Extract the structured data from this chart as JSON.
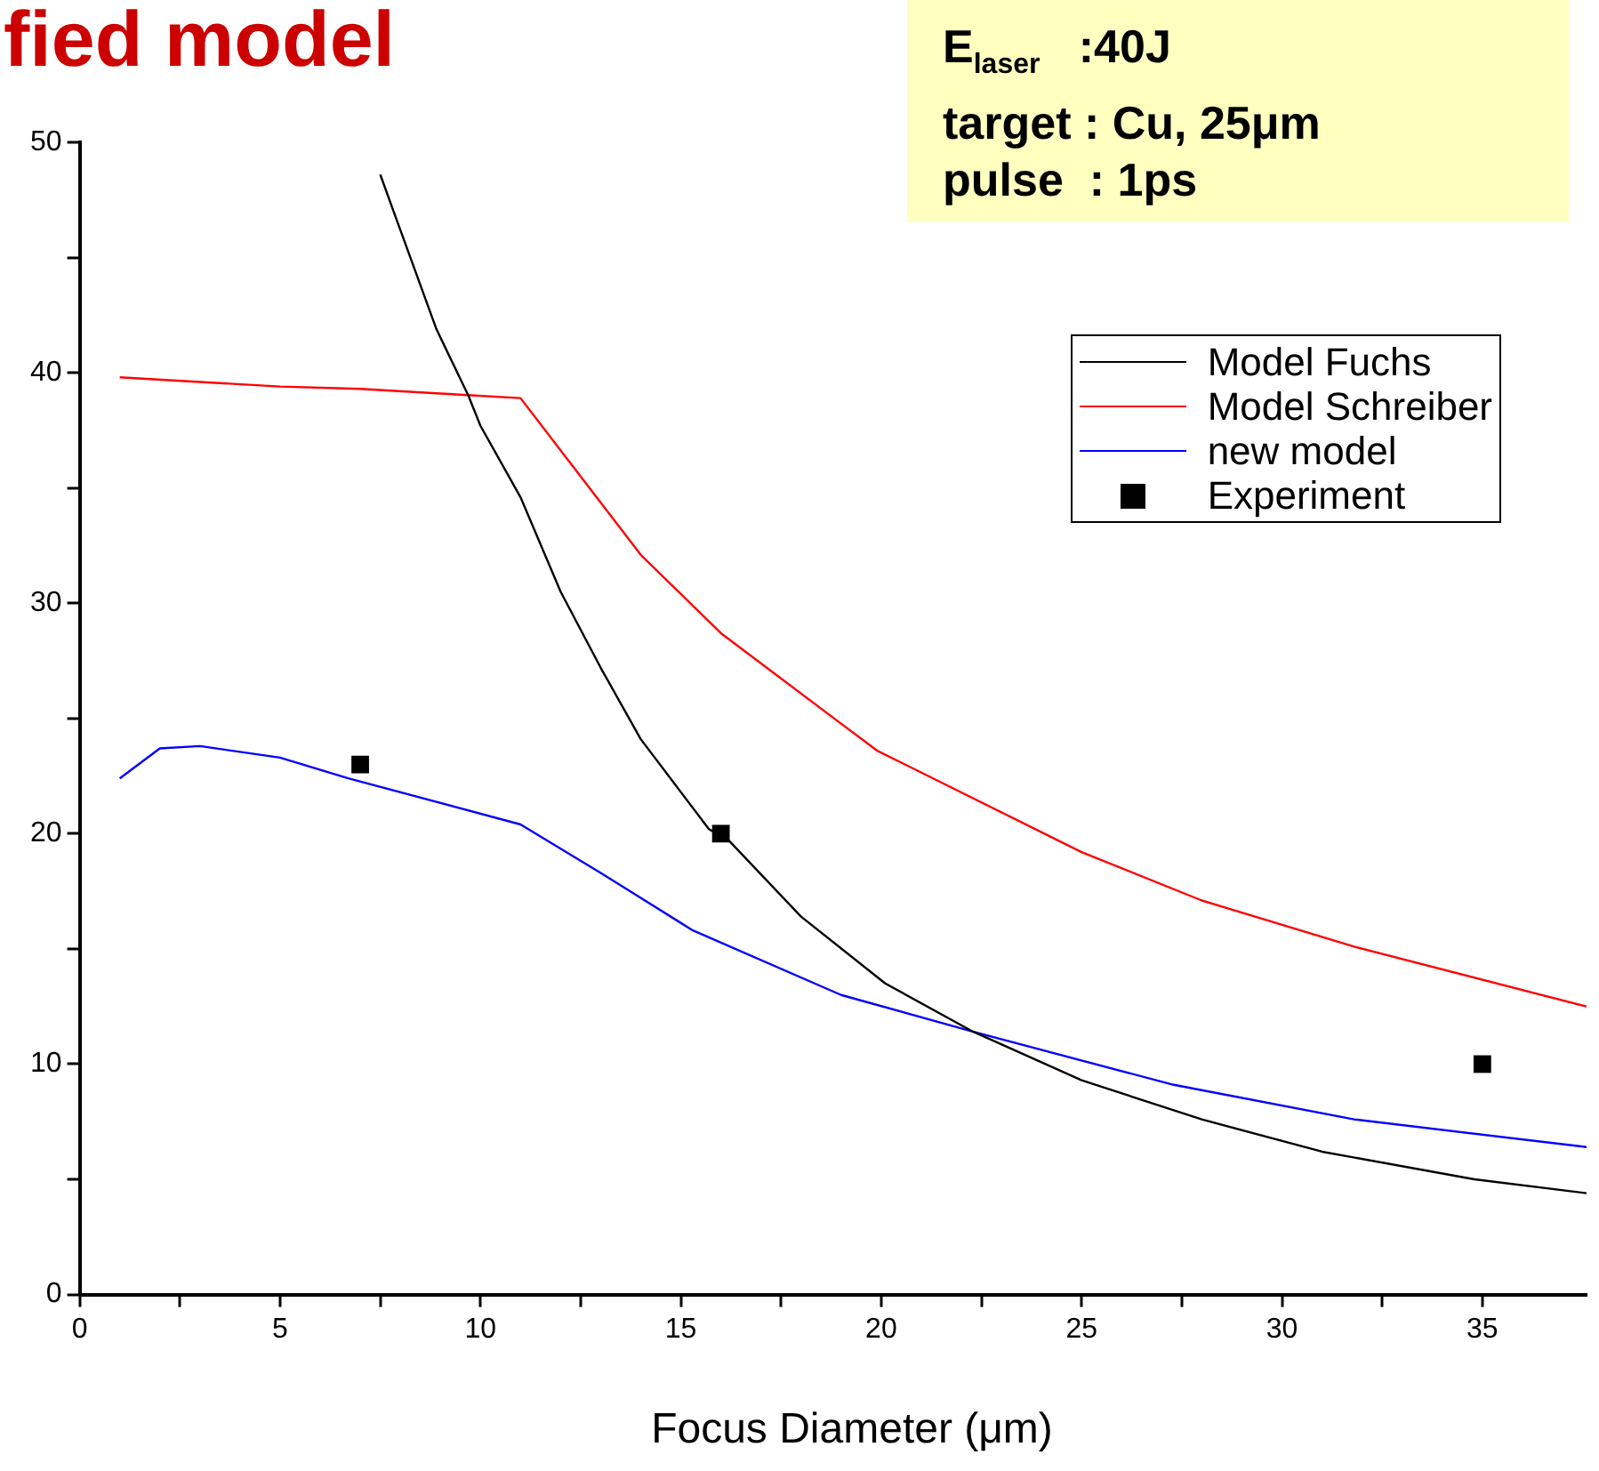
{
  "chart_data": {
    "type": "line",
    "title": "fied model",
    "xlabel": "Focus Diameter (μm)",
    "annotations": [
      "E$_{laser}$   :40J",
      "target : Cu, 25μm",
      "pulse  : 1ps"
    ],
    "xlim": [
      0,
      37.6
    ],
    "ylim": [
      0,
      50
    ],
    "xticks": [
      0,
      {
        "value": 2.5,
        "label": null
      },
      5,
      {
        "value": 7.5,
        "label": null
      },
      10,
      {
        "value": 12.5,
        "label": null
      },
      15,
      {
        "value": 17.5,
        "label": null
      },
      20,
      {
        "value": 22.5,
        "label": null
      },
      25,
      {
        "value": 27.5,
        "label": null
      },
      30,
      {
        "value": 32.5,
        "label": null
      },
      35
    ],
    "yticks": [
      0,
      {
        "value": 5,
        "label": null
      },
      10,
      {
        "value": 15,
        "label": null
      },
      20,
      {
        "value": 25,
        "label": null
      },
      30,
      {
        "value": 35,
        "label": null
      },
      40,
      {
        "value": 45,
        "label": null
      },
      50
    ],
    "grid": false,
    "legend": "top right",
    "line_style": "solid",
    "series": [
      {
        "name": "Model Fuchs",
        "color": "#000000",
        "marker": "none",
        "x": [
          7.5,
          8.0,
          8.9,
          9.7,
          10.0,
          11.0,
          12.0,
          13.0,
          14.0,
          15.7,
          16.2,
          18.0,
          20.1,
          22.3,
          25.0,
          28.0,
          31.0,
          34.8,
          37.6
        ],
        "values": [
          48.6,
          46.2,
          41.9,
          39.0,
          37.7,
          34.6,
          30.5,
          27.2,
          24.1,
          20.2,
          19.7,
          16.4,
          13.5,
          11.4,
          9.3,
          7.6,
          6.2,
          5.0,
          4.4
        ]
      },
      {
        "name": "Model Schreiber",
        "color": "#ff0000",
        "marker": "none",
        "x": [
          1,
          3,
          5,
          7,
          9,
          11,
          14.0,
          16.0,
          18.9,
          19.9,
          25.0,
          28.0,
          31.8,
          37.6
        ],
        "values": [
          39.8,
          39.6,
          39.4,
          39.3,
          39.1,
          38.9,
          32.1,
          28.7,
          24.9,
          23.6,
          19.2,
          17.1,
          15.1,
          12.5
        ]
      },
      {
        "name": "new model",
        "color": "#0000ff",
        "marker": "none",
        "x": [
          1,
          2,
          3,
          5,
          6.7,
          11,
          13,
          15.3,
          19.0,
          22.3,
          27.3,
          31.8,
          37.6
        ],
        "values": [
          22.4,
          23.7,
          23.8,
          23.3,
          22.4,
          20.4,
          18.3,
          15.8,
          13.0,
          11.4,
          9.1,
          7.6,
          6.4
        ]
      },
      {
        "name": "Experiment",
        "type": "scatter",
        "color": "#000000",
        "marker": "square",
        "x": [
          7,
          16,
          35
        ],
        "values": [
          23,
          20,
          10
        ]
      }
    ]
  }
}
